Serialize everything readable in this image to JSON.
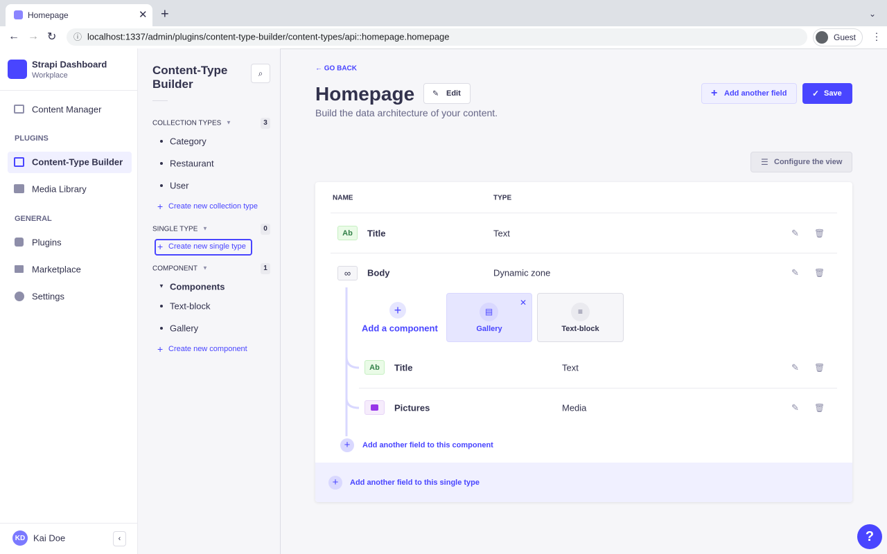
{
  "browser": {
    "tab_title": "Homepage",
    "url": "localhost:1337/admin/plugins/content-type-builder/content-types/api::homepage.homepage",
    "profile": "Guest"
  },
  "nav": {
    "app_name": "Strapi Dashboard",
    "workspace": "Workplace",
    "content_manager": "Content Manager",
    "plugins_heading": "PLUGINS",
    "plugins": [
      "Content-Type Builder",
      "Media Library"
    ],
    "general_heading": "GENERAL",
    "general": [
      "Plugins",
      "Marketplace",
      "Settings"
    ],
    "user_initials": "KD",
    "user_name": "Kai Doe"
  },
  "ctb": {
    "title": "Content-Type Builder",
    "sections": [
      {
        "heading": "COLLECTION TYPES",
        "count": 3,
        "items": [
          "Category",
          "Restaurant",
          "User"
        ],
        "create": "Create new collection type"
      },
      {
        "heading": "SINGLE TYPE",
        "count": 0,
        "items": [],
        "create": "Create new single type"
      },
      {
        "heading": "COMPONENT",
        "count": 1,
        "group": "Components",
        "items": [
          "Text-block",
          "Gallery"
        ],
        "create": "Create new component"
      }
    ]
  },
  "main": {
    "back": "GO BACK",
    "title": "Homepage",
    "edit": "Edit",
    "subtitle": "Build the data architecture of your content.",
    "add_field": "Add another field",
    "save": "Save",
    "configure": "Configure the view",
    "columns": [
      "NAME",
      "TYPE"
    ],
    "fields": [
      {
        "badge": "Ab",
        "name": "Title",
        "type": "Text"
      },
      {
        "name": "Body",
        "type": "Dynamic zone"
      }
    ],
    "dynamic_zone": {
      "add_component": "Add a component",
      "components": [
        "Gallery",
        "Text-block"
      ],
      "fields": [
        {
          "badge": "Ab",
          "name": "Title",
          "type": "Text"
        },
        {
          "name": "Pictures",
          "type": "Media"
        }
      ],
      "add_to_component": "Add another field to this component"
    },
    "add_to_single_type": "Add another field to this single type"
  },
  "help": "?"
}
